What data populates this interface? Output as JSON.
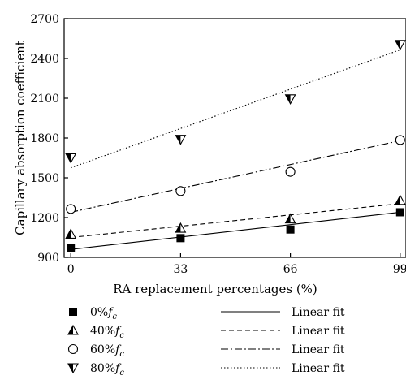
{
  "chart_data": {
    "type": "scatter",
    "xlabel": "RA replacement percentages (%)",
    "ylabel": "Capillary absorption coefficient",
    "x_ticks": [
      "0",
      "33",
      "66",
      "99"
    ],
    "y_ticks": [
      "900",
      "1200",
      "1500",
      "1800",
      "2100",
      "2400",
      "2700"
    ],
    "xlim": [
      -2,
      101
    ],
    "ylim": [
      900,
      2700
    ],
    "grid": false,
    "legend_placement": "bottom",
    "x": [
      0,
      33,
      66,
      99
    ],
    "series": [
      {
        "name": "0%",
        "name_sub": "f",
        "name_subscript": "c",
        "marker": "square-filled",
        "values": [
          970,
          1045,
          1110,
          1240
        ],
        "fit_label": "Linear fit",
        "fit_style": "solid",
        "fit": [
          960,
          1240
        ]
      },
      {
        "name": "40%",
        "name_sub": "f",
        "name_subscript": "c",
        "marker": "triangle-up-half",
        "values": [
          1075,
          1120,
          1190,
          1330
        ],
        "fit_label": "Linear fit",
        "fit_style": "dashed",
        "fit": [
          1050,
          1305
        ]
      },
      {
        "name": "60%",
        "name_sub": "f",
        "name_subscript": "c",
        "marker": "circle-open",
        "values": [
          1265,
          1400,
          1545,
          1785
        ],
        "fit_label": "Linear fit",
        "fit_style": "dashdot",
        "fit": [
          1240,
          1780
        ]
      },
      {
        "name": "80%",
        "name_sub": "f",
        "name_subscript": "c",
        "marker": "triangle-down-half",
        "values": [
          1650,
          1790,
          2095,
          2505
        ],
        "fit_label": "Linear fit",
        "fit_style": "dotted",
        "fit": [
          1575,
          2465
        ]
      }
    ]
  }
}
